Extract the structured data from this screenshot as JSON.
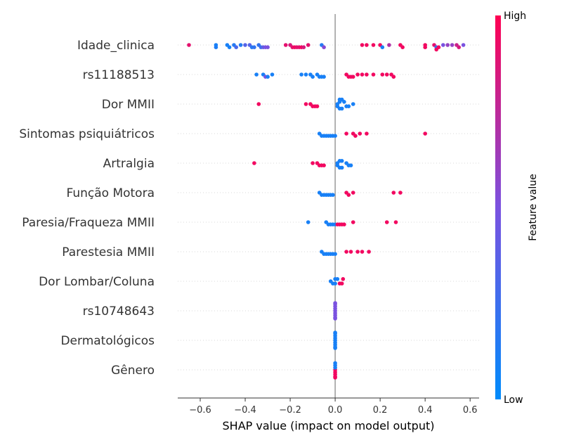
{
  "chart_data": {
    "type": "scatter",
    "subtype": "shap-beeswarm",
    "xlabel": "SHAP value (impact on model output)",
    "xlim": [
      -0.7,
      0.64
    ],
    "xticks": [
      -0.6,
      -0.4,
      -0.2,
      0.0,
      0.2,
      0.4,
      0.6
    ],
    "xtick_labels": [
      "−0.6",
      "−0.4",
      "−0.2",
      "0.0",
      "0.2",
      "0.4",
      "0.6"
    ],
    "colorbar": {
      "label": "Feature value",
      "high": "High",
      "low": "Low",
      "low_color": "#008bfb",
      "high_color": "#ff0052"
    },
    "grid": "horizontal dotted per feature",
    "features": [
      {
        "name": "Idade_clinica",
        "points": [
          [
            -0.65,
            0.9
          ],
          [
            -0.53,
            0.1
          ],
          [
            -0.53,
            0.12
          ],
          [
            -0.48,
            0.1
          ],
          [
            -0.47,
            0.1
          ],
          [
            -0.45,
            0.15
          ],
          [
            -0.44,
            0.3
          ],
          [
            -0.42,
            0.15
          ],
          [
            -0.4,
            0.35
          ],
          [
            -0.38,
            0.35
          ],
          [
            -0.37,
            0.15
          ],
          [
            -0.36,
            0.2
          ],
          [
            -0.34,
            0.2
          ],
          [
            -0.33,
            0.25
          ],
          [
            -0.32,
            0.4
          ],
          [
            -0.31,
            0.5
          ],
          [
            -0.3,
            0.5
          ],
          [
            -0.22,
            0.9
          ],
          [
            -0.2,
            0.85
          ],
          [
            -0.19,
            0.9
          ],
          [
            -0.18,
            0.95
          ],
          [
            -0.17,
            0.9
          ],
          [
            -0.16,
            0.9
          ],
          [
            -0.15,
            0.95
          ],
          [
            -0.14,
            0.85
          ],
          [
            -0.12,
            0.9
          ],
          [
            -0.06,
            0.15
          ],
          [
            -0.05,
            0.55
          ],
          [
            0.12,
            0.95
          ],
          [
            0.14,
            0.95
          ],
          [
            0.17,
            0.95
          ],
          [
            0.2,
            0.95
          ],
          [
            0.21,
            0.1
          ],
          [
            0.24,
            0.7
          ],
          [
            0.29,
            0.95
          ],
          [
            0.3,
            0.95
          ],
          [
            0.4,
            0.95
          ],
          [
            0.4,
            0.95
          ],
          [
            0.44,
            0.9
          ],
          [
            0.45,
            0.2
          ],
          [
            0.46,
            0.95
          ],
          [
            0.45,
            0.95
          ],
          [
            0.48,
            0.5
          ],
          [
            0.5,
            0.6
          ],
          [
            0.52,
            0.6
          ],
          [
            0.54,
            0.8
          ],
          [
            0.55,
            0.85
          ],
          [
            0.57,
            0.5
          ]
        ]
      },
      {
        "name": "rs11188513",
        "points": [
          [
            -0.35,
            0.1
          ],
          [
            -0.32,
            0.1
          ],
          [
            -0.31,
            0.5
          ],
          [
            -0.3,
            0.1
          ],
          [
            -0.28,
            0.1
          ],
          [
            -0.15,
            0.1
          ],
          [
            -0.13,
            0.1
          ],
          [
            -0.11,
            0.1
          ],
          [
            -0.1,
            0.1
          ],
          [
            -0.08,
            0.1
          ],
          [
            -0.07,
            0.1
          ],
          [
            -0.06,
            0.1
          ],
          [
            -0.05,
            0.1
          ],
          [
            0.05,
            0.95
          ],
          [
            0.06,
            0.95
          ],
          [
            0.07,
            0.95
          ],
          [
            0.08,
            0.95
          ],
          [
            0.1,
            0.95
          ],
          [
            0.12,
            0.95
          ],
          [
            0.14,
            0.95
          ],
          [
            0.17,
            0.95
          ],
          [
            0.21,
            0.95
          ],
          [
            0.23,
            0.95
          ],
          [
            0.25,
            0.95
          ],
          [
            0.26,
            0.95
          ]
        ]
      },
      {
        "name": "Dor MMII",
        "points": [
          [
            -0.34,
            0.95
          ],
          [
            -0.13,
            0.95
          ],
          [
            -0.11,
            0.95
          ],
          [
            -0.1,
            0.95
          ],
          [
            -0.09,
            0.95
          ],
          [
            -0.08,
            0.95
          ],
          [
            0.01,
            0.1
          ],
          [
            0.01,
            0.1
          ],
          [
            0.02,
            0.1
          ],
          [
            0.02,
            0.1
          ],
          [
            0.02,
            0.1
          ],
          [
            0.03,
            0.1
          ],
          [
            0.03,
            0.1
          ],
          [
            0.04,
            0.1
          ],
          [
            0.05,
            0.1
          ],
          [
            0.06,
            0.1
          ],
          [
            0.08,
            0.1
          ]
        ]
      },
      {
        "name": "Sintomas psiquiátricos",
        "points": [
          [
            -0.07,
            0.1
          ],
          [
            -0.06,
            0.1
          ],
          [
            -0.05,
            0.1
          ],
          [
            -0.04,
            0.1
          ],
          [
            -0.03,
            0.1
          ],
          [
            -0.02,
            0.1
          ],
          [
            -0.01,
            0.1
          ],
          [
            0.0,
            0.1
          ],
          [
            0.05,
            0.95
          ],
          [
            0.08,
            0.95
          ],
          [
            0.09,
            0.95
          ],
          [
            0.11,
            0.95
          ],
          [
            0.14,
            0.95
          ],
          [
            0.4,
            0.95
          ]
        ]
      },
      {
        "name": "Artralgia",
        "points": [
          [
            -0.36,
            0.95
          ],
          [
            -0.1,
            0.95
          ],
          [
            -0.08,
            0.95
          ],
          [
            -0.07,
            0.95
          ],
          [
            -0.06,
            0.95
          ],
          [
            -0.05,
            0.95
          ],
          [
            0.01,
            0.1
          ],
          [
            0.01,
            0.1
          ],
          [
            0.02,
            0.1
          ],
          [
            0.02,
            0.1
          ],
          [
            0.03,
            0.1
          ],
          [
            0.03,
            0.1
          ],
          [
            0.05,
            0.1
          ],
          [
            0.06,
            0.1
          ],
          [
            0.07,
            0.1
          ]
        ]
      },
      {
        "name": "Função Motora",
        "points": [
          [
            -0.07,
            0.1
          ],
          [
            -0.06,
            0.1
          ],
          [
            -0.05,
            0.1
          ],
          [
            -0.04,
            0.1
          ],
          [
            -0.03,
            0.1
          ],
          [
            -0.02,
            0.1
          ],
          [
            -0.01,
            0.1
          ],
          [
            0.05,
            0.95
          ],
          [
            0.06,
            0.95
          ],
          [
            0.08,
            0.95
          ],
          [
            0.26,
            0.95
          ],
          [
            0.29,
            0.95
          ]
        ]
      },
      {
        "name": "Paresia/Fraqueza MMII",
        "points": [
          [
            -0.12,
            0.1
          ],
          [
            -0.04,
            0.1
          ],
          [
            -0.03,
            0.1
          ],
          [
            -0.02,
            0.1
          ],
          [
            -0.01,
            0.1
          ],
          [
            0.0,
            0.1
          ],
          [
            0.01,
            0.95
          ],
          [
            0.02,
            0.95
          ],
          [
            0.03,
            0.95
          ],
          [
            0.04,
            0.95
          ],
          [
            0.08,
            0.95
          ],
          [
            0.23,
            0.95
          ],
          [
            0.27,
            0.95
          ]
        ]
      },
      {
        "name": "Parestesia MMII",
        "points": [
          [
            -0.06,
            0.1
          ],
          [
            -0.05,
            0.1
          ],
          [
            -0.04,
            0.1
          ],
          [
            -0.03,
            0.1
          ],
          [
            -0.02,
            0.1
          ],
          [
            -0.01,
            0.1
          ],
          [
            0.0,
            0.1
          ],
          [
            0.05,
            0.95
          ],
          [
            0.07,
            0.95
          ],
          [
            0.1,
            0.95
          ],
          [
            0.12,
            0.95
          ],
          [
            0.15,
            0.95
          ]
        ]
      },
      {
        "name": "Dor Lombar/Coluna",
        "points": [
          [
            -0.02,
            0.1
          ],
          [
            -0.01,
            0.1
          ],
          [
            0.0,
            0.1
          ],
          [
            0.0,
            0.1
          ],
          [
            0.01,
            0.1
          ],
          [
            0.02,
            0.95
          ],
          [
            0.03,
            0.95
          ],
          [
            0.035,
            0.95
          ]
        ]
      },
      {
        "name": "rs10748643",
        "points": [
          [
            0.0,
            0.5
          ],
          [
            0.0,
            0.5
          ],
          [
            0.0,
            0.5
          ],
          [
            0.0,
            0.5
          ],
          [
            0.0,
            0.5
          ],
          [
            0.0,
            0.5
          ],
          [
            0.0,
            0.5
          ],
          [
            0.0,
            0.5
          ],
          [
            0.0,
            0.5
          ]
        ]
      },
      {
        "name": "Dermatológicos",
        "points": [
          [
            0.0,
            0.1
          ],
          [
            0.0,
            0.1
          ],
          [
            0.0,
            0.1
          ],
          [
            0.0,
            0.1
          ],
          [
            0.0,
            0.1
          ],
          [
            0.0,
            0.1
          ],
          [
            0.0,
            0.1
          ],
          [
            0.0,
            0.1
          ],
          [
            0.0,
            0.1
          ]
        ]
      },
      {
        "name": "Gênero",
        "points": [
          [
            0.0,
            0.95
          ],
          [
            0.0,
            0.95
          ],
          [
            0.0,
            0.1
          ],
          [
            0.0,
            0.95
          ],
          [
            0.0,
            0.1
          ],
          [
            0.0,
            0.95
          ],
          [
            0.0,
            0.1
          ],
          [
            0.0,
            0.95
          ]
        ]
      }
    ]
  }
}
